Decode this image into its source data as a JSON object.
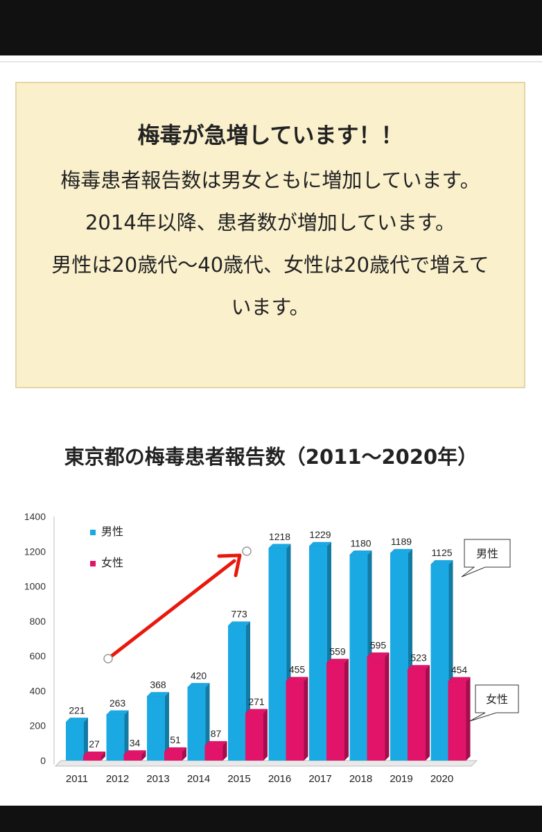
{
  "notice": {
    "title": "梅毒が急増しています！！",
    "paragraphs": [
      "梅毒患者報告数は男女ともに増加しています。2014年以降、患者数が増加しています。",
      "男性は20歳代〜40歳代、女性は20歳代で増えています。"
    ]
  },
  "chart_title": "東京都の梅毒患者報告数（2011〜2020年）",
  "chart_data": {
    "type": "bar",
    "categories": [
      "2011",
      "2012",
      "2013",
      "2014",
      "2015",
      "2016",
      "2017",
      "2018",
      "2019",
      "2020"
    ],
    "series": [
      {
        "name": "男性",
        "color": "#1ba9e4",
        "values": [
          221,
          263,
          368,
          420,
          773,
          1218,
          1229,
          1180,
          1189,
          1125
        ]
      },
      {
        "name": "女性",
        "color": "#e2146a",
        "values": [
          27,
          34,
          51,
          87,
          271,
          455,
          559,
          595,
          523,
          454
        ]
      }
    ],
    "ylim": [
      0,
      1400
    ],
    "yticks": [
      0,
      200,
      400,
      600,
      800,
      1000,
      1200,
      1400
    ],
    "legend_position": "top-left",
    "callouts": [
      "男性",
      "女性"
    ],
    "trend_arrow_color": "#e8190c",
    "grid": false
  }
}
